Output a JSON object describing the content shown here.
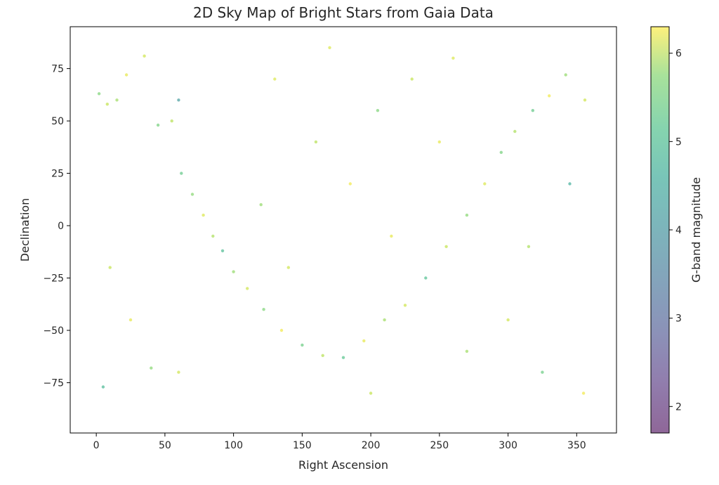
{
  "chart_data": {
    "type": "scatter",
    "title": "2D Sky Map of Bright Stars from Gaia Data",
    "xlabel": "Right Ascension",
    "ylabel": "Declination",
    "xlim": [
      -19,
      379
    ],
    "ylim": [
      -99,
      95
    ],
    "xticks": [
      0,
      50,
      100,
      150,
      200,
      250,
      300,
      350
    ],
    "xtick_labels": [
      "0",
      "50",
      "100",
      "150",
      "200",
      "250",
      "300",
      "350"
    ],
    "yticks": [
      -75,
      -50,
      -25,
      0,
      25,
      50,
      75
    ],
    "ytick_labels": [
      "−75",
      "−50",
      "−25",
      "0",
      "25",
      "50",
      "75"
    ],
    "colorbar": {
      "label": "G-band magnitude",
      "colormap": "viridis",
      "range": [
        1.7,
        6.3
      ],
      "ticks": [
        2,
        3,
        4,
        5,
        6
      ],
      "tick_labels": [
        "2",
        "3",
        "4",
        "5",
        "6"
      ]
    },
    "marker_opacity": 0.6,
    "grid": false,
    "legend": "none",
    "series": [
      {
        "points": [
          {
            "x": 2,
            "y": 63,
            "mag": 5.2
          },
          {
            "x": 8,
            "y": 58,
            "mag": 5.8
          },
          {
            "x": 15,
            "y": 60,
            "mag": 5.5
          },
          {
            "x": 22,
            "y": 72,
            "mag": 6.1
          },
          {
            "x": 35,
            "y": 81,
            "mag": 5.9
          },
          {
            "x": 45,
            "y": 48,
            "mag": 5.1
          },
          {
            "x": 55,
            "y": 50,
            "mag": 5.7
          },
          {
            "x": 62,
            "y": 25,
            "mag": 4.9
          },
          {
            "x": 70,
            "y": 15,
            "mag": 5.3
          },
          {
            "x": 78,
            "y": 5,
            "mag": 6.0
          },
          {
            "x": 85,
            "y": -5,
            "mag": 5.6
          },
          {
            "x": 92,
            "y": -12,
            "mag": 4.6
          },
          {
            "x": 100,
            "y": -22,
            "mag": 5.4
          },
          {
            "x": 110,
            "y": -30,
            "mag": 5.9
          },
          {
            "x": 122,
            "y": -40,
            "mag": 5.2
          },
          {
            "x": 135,
            "y": -50,
            "mag": 6.2
          },
          {
            "x": 150,
            "y": -57,
            "mag": 5.0
          },
          {
            "x": 165,
            "y": -62,
            "mag": 5.7
          },
          {
            "x": 180,
            "y": -63,
            "mag": 4.8
          },
          {
            "x": 195,
            "y": -55,
            "mag": 6.1
          },
          {
            "x": 210,
            "y": -45,
            "mag": 5.5
          },
          {
            "x": 225,
            "y": -38,
            "mag": 5.9
          },
          {
            "x": 240,
            "y": -25,
            "mag": 4.7
          },
          {
            "x": 255,
            "y": -10,
            "mag": 5.8
          },
          {
            "x": 270,
            "y": 5,
            "mag": 5.3
          },
          {
            "x": 283,
            "y": 20,
            "mag": 6.0
          },
          {
            "x": 295,
            "y": 35,
            "mag": 5.1
          },
          {
            "x": 305,
            "y": 45,
            "mag": 5.6
          },
          {
            "x": 318,
            "y": 55,
            "mag": 4.9
          },
          {
            "x": 330,
            "y": 62,
            "mag": 6.2
          },
          {
            "x": 342,
            "y": 72,
            "mag": 5.4
          },
          {
            "x": 356,
            "y": 60,
            "mag": 5.9
          },
          {
            "x": 10,
            "y": -20,
            "mag": 5.8
          },
          {
            "x": 25,
            "y": -45,
            "mag": 6.1
          },
          {
            "x": 40,
            "y": -68,
            "mag": 5.3
          },
          {
            "x": 5,
            "y": -77,
            "mag": 4.5
          },
          {
            "x": 60,
            "y": -70,
            "mag": 5.9
          },
          {
            "x": 130,
            "y": 70,
            "mag": 6.0
          },
          {
            "x": 160,
            "y": 40,
            "mag": 5.7
          },
          {
            "x": 185,
            "y": 20,
            "mag": 6.2
          },
          {
            "x": 205,
            "y": 55,
            "mag": 5.2
          },
          {
            "x": 230,
            "y": 70,
            "mag": 5.8
          },
          {
            "x": 250,
            "y": 40,
            "mag": 6.1
          },
          {
            "x": 270,
            "y": -60,
            "mag": 5.5
          },
          {
            "x": 300,
            "y": -45,
            "mag": 5.9
          },
          {
            "x": 325,
            "y": -70,
            "mag": 5.0
          },
          {
            "x": 355,
            "y": -80,
            "mag": 6.2
          },
          {
            "x": 345,
            "y": 20,
            "mag": 4.3
          },
          {
            "x": 315,
            "y": -10,
            "mag": 5.6
          },
          {
            "x": 170,
            "y": 85,
            "mag": 6.0
          },
          {
            "x": 120,
            "y": 10,
            "mag": 5.4
          },
          {
            "x": 140,
            "y": -20,
            "mag": 5.9
          },
          {
            "x": 215,
            "y": -5,
            "mag": 6.1
          },
          {
            "x": 60,
            "y": 60,
            "mag": 3.9
          },
          {
            "x": 200,
            "y": -80,
            "mag": 5.8
          },
          {
            "x": 260,
            "y": 80,
            "mag": 6.0
          }
        ]
      }
    ]
  }
}
